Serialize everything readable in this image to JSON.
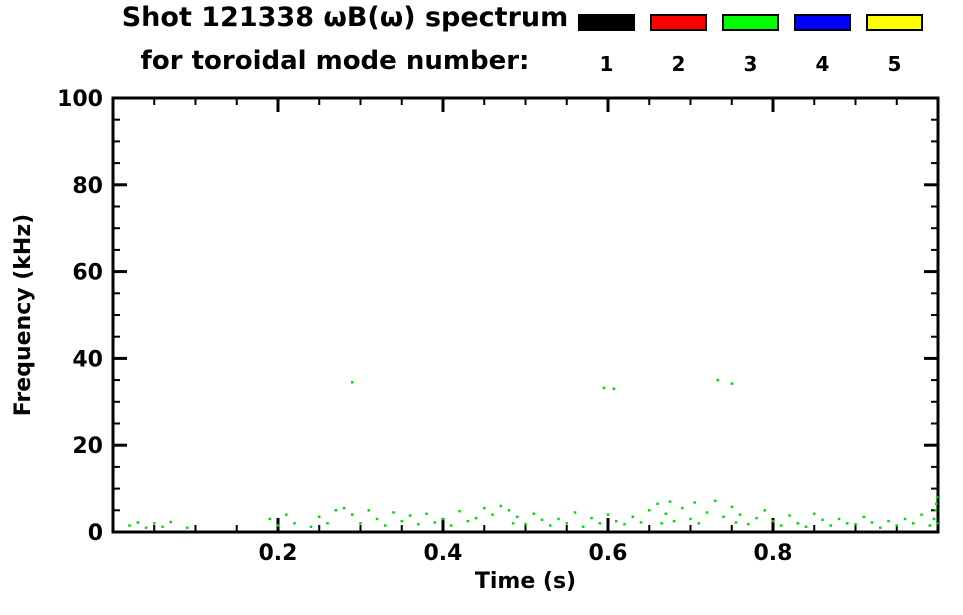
{
  "chart_data": {
    "type": "scatter",
    "title": "Shot 121338 ωB(ω) spectrum",
    "subtitle": "for toroidal mode number:",
    "xlabel": "Time (s)",
    "ylabel": "Frequency (kHz)",
    "xlim": [
      0,
      1.0
    ],
    "ylim": [
      0,
      100
    ],
    "xticks": [
      0.2,
      0.4,
      0.6,
      0.8
    ],
    "yticks": [
      0,
      20,
      40,
      60,
      80,
      100
    ],
    "x_minor_step": 0.05,
    "y_minor_step": 5,
    "grid": false,
    "legend_position": "top-right",
    "legend": [
      {
        "label": "1",
        "color": "#000000"
      },
      {
        "label": "2",
        "color": "#ff0000"
      },
      {
        "label": "3",
        "color": "#00ff00"
      },
      {
        "label": "4",
        "color": "#0000ff"
      },
      {
        "label": "5",
        "color": "#ffff00"
      }
    ],
    "series": [
      {
        "name": "mode 3",
        "color": "#00dd00",
        "marker_px": 2.5,
        "points": [
          [
            0.02,
            1.5
          ],
          [
            0.03,
            2.2
          ],
          [
            0.04,
            1.0
          ],
          [
            0.05,
            2.0
          ],
          [
            0.06,
            1.2
          ],
          [
            0.07,
            2.3
          ],
          [
            0.09,
            1.0
          ],
          [
            0.19,
            3.0
          ],
          [
            0.2,
            1.5
          ],
          [
            0.21,
            4.0
          ],
          [
            0.22,
            2.0
          ],
          [
            0.24,
            1.2
          ],
          [
            0.25,
            3.5
          ],
          [
            0.26,
            2.0
          ],
          [
            0.27,
            5.0
          ],
          [
            0.28,
            5.5
          ],
          [
            0.29,
            4.0
          ],
          [
            0.3,
            2.0
          ],
          [
            0.31,
            5.0
          ],
          [
            0.32,
            3.0
          ],
          [
            0.33,
            1.5
          ],
          [
            0.34,
            4.5
          ],
          [
            0.35,
            2.5
          ],
          [
            0.36,
            3.8
          ],
          [
            0.37,
            1.8
          ],
          [
            0.38,
            4.2
          ],
          [
            0.39,
            2.2
          ],
          [
            0.4,
            3.0
          ],
          [
            0.41,
            1.5
          ],
          [
            0.42,
            4.8
          ],
          [
            0.43,
            2.5
          ],
          [
            0.44,
            3.2
          ],
          [
            0.45,
            5.5
          ],
          [
            0.46,
            4.0
          ],
          [
            0.47,
            6.0
          ],
          [
            0.48,
            5.0
          ],
          [
            0.485,
            2.0
          ],
          [
            0.49,
            3.5
          ],
          [
            0.5,
            1.8
          ],
          [
            0.51,
            4.2
          ],
          [
            0.52,
            2.8
          ],
          [
            0.53,
            1.5
          ],
          [
            0.54,
            3.0
          ],
          [
            0.55,
            2.0
          ],
          [
            0.56,
            4.5
          ],
          [
            0.57,
            1.2
          ],
          [
            0.58,
            3.2
          ],
          [
            0.59,
            2.0
          ],
          [
            0.6,
            4.0
          ],
          [
            0.61,
            2.5
          ],
          [
            0.62,
            1.8
          ],
          [
            0.63,
            3.5
          ],
          [
            0.64,
            2.2
          ],
          [
            0.65,
            5.0
          ],
          [
            0.66,
            6.5
          ],
          [
            0.665,
            2.0
          ],
          [
            0.67,
            4.2
          ],
          [
            0.675,
            7.0
          ],
          [
            0.68,
            2.5
          ],
          [
            0.69,
            5.5
          ],
          [
            0.7,
            3.0
          ],
          [
            0.705,
            6.8
          ],
          [
            0.71,
            2.0
          ],
          [
            0.72,
            4.5
          ],
          [
            0.73,
            7.2
          ],
          [
            0.74,
            3.5
          ],
          [
            0.75,
            5.8
          ],
          [
            0.755,
            2.2
          ],
          [
            0.76,
            4.0
          ],
          [
            0.77,
            1.8
          ],
          [
            0.78,
            3.2
          ],
          [
            0.79,
            5.0
          ],
          [
            0.8,
            2.5
          ],
          [
            0.81,
            1.5
          ],
          [
            0.82,
            3.8
          ],
          [
            0.83,
            2.0
          ],
          [
            0.84,
            1.2
          ],
          [
            0.85,
            4.2
          ],
          [
            0.86,
            2.8
          ],
          [
            0.87,
            1.5
          ],
          [
            0.88,
            3.0
          ],
          [
            0.89,
            2.0
          ],
          [
            0.9,
            1.8
          ],
          [
            0.91,
            3.5
          ],
          [
            0.92,
            2.2
          ],
          [
            0.93,
            1.0
          ],
          [
            0.94,
            2.5
          ],
          [
            0.95,
            1.5
          ],
          [
            0.96,
            3.0
          ],
          [
            0.97,
            2.0
          ],
          [
            0.98,
            4.0
          ],
          [
            0.99,
            1.5
          ],
          [
            0.995,
            3.0
          ],
          [
            0.997,
            5.0
          ],
          [
            0.998,
            6.5
          ],
          [
            0.999,
            8.0
          ],
          [
            0.999,
            2.0
          ],
          [
            0.29,
            34.5
          ],
          [
            0.595,
            33.2
          ],
          [
            0.607,
            33.0
          ],
          [
            0.733,
            35.0
          ],
          [
            0.75,
            34.2
          ]
        ]
      }
    ]
  }
}
